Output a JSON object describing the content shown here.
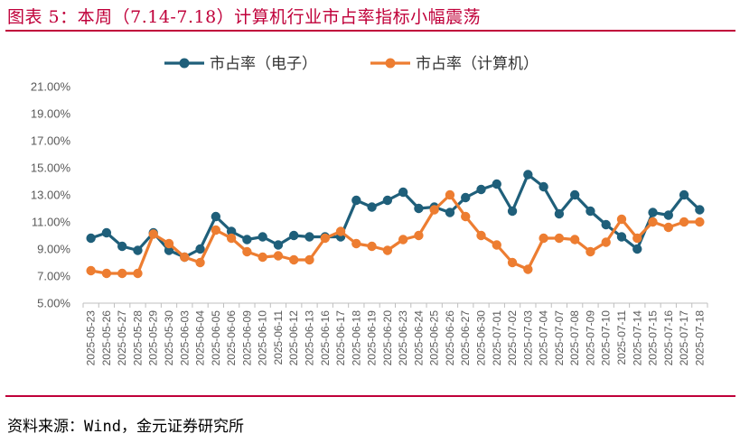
{
  "title": "图表 5：本周（7.14-7.18）计算机行业市占率指标小幅震荡",
  "source": "资料来源：Wind，金元证券研究所",
  "colors": {
    "accent": "#c0003a",
    "series1": "#1f5f7a",
    "series2": "#ed7d31"
  },
  "chart_data": {
    "type": "line",
    "legend_position": "top",
    "grid": false,
    "y_tick_labels": [
      "5.00%",
      "7.00%",
      "9.00%",
      "11.00%",
      "13.00%",
      "15.00%",
      "17.00%",
      "19.00%",
      "21.00%"
    ],
    "ylim": [
      5,
      21
    ],
    "y_ticks": [
      5,
      7,
      9,
      11,
      13,
      15,
      17,
      19,
      21
    ],
    "x": [
      "2025-05-23",
      "2025-05-26",
      "2025-05-27",
      "2025-05-28",
      "2025-05-29",
      "2025-05-30",
      "2025-06-03",
      "2025-06-04",
      "2025-06-05",
      "2025-06-06",
      "2025-06-09",
      "2025-06-10",
      "2025-06-11",
      "2025-06-12",
      "2025-06-13",
      "2025-06-16",
      "2025-06-17",
      "2025-06-18",
      "2025-06-19",
      "2025-06-20",
      "2025-06-23",
      "2025-06-24",
      "2025-06-25",
      "2025-06-26",
      "2025-06-27",
      "2025-06-30",
      "2025-07-01",
      "2025-07-02",
      "2025-07-03",
      "2025-07-04",
      "2025-07-07",
      "2025-07-08",
      "2025-07-09",
      "2025-07-10",
      "2025-07-11",
      "2025-07-14",
      "2025-07-15",
      "2025-07-16",
      "2025-07-17",
      "2025-07-18"
    ],
    "series": [
      {
        "name": "市占率（电子）",
        "values": [
          9.8,
          10.2,
          9.2,
          8.9,
          10.2,
          8.9,
          8.4,
          9.0,
          11.4,
          10.3,
          9.7,
          9.9,
          9.3,
          10.0,
          9.9,
          9.9,
          9.9,
          12.6,
          12.1,
          12.6,
          13.2,
          12.0,
          12.1,
          11.7,
          12.8,
          13.4,
          13.8,
          11.8,
          14.5,
          13.6,
          11.6,
          13.0,
          11.8,
          10.8,
          9.9,
          9.0,
          11.7,
          11.5,
          13.0,
          11.9
        ]
      },
      {
        "name": "市占率（计算机）",
        "values": [
          7.4,
          7.2,
          7.2,
          7.2,
          10.1,
          9.4,
          8.4,
          8.0,
          10.4,
          9.8,
          8.8,
          8.4,
          8.5,
          8.2,
          8.2,
          9.8,
          10.3,
          9.4,
          9.2,
          8.9,
          9.7,
          10.0,
          11.9,
          13.0,
          11.4,
          10.0,
          9.3,
          8.0,
          7.5,
          9.8,
          9.8,
          9.7,
          8.8,
          9.5,
          11.2,
          9.8,
          11.0,
          10.6,
          11.0,
          11.0
        ]
      }
    ]
  }
}
